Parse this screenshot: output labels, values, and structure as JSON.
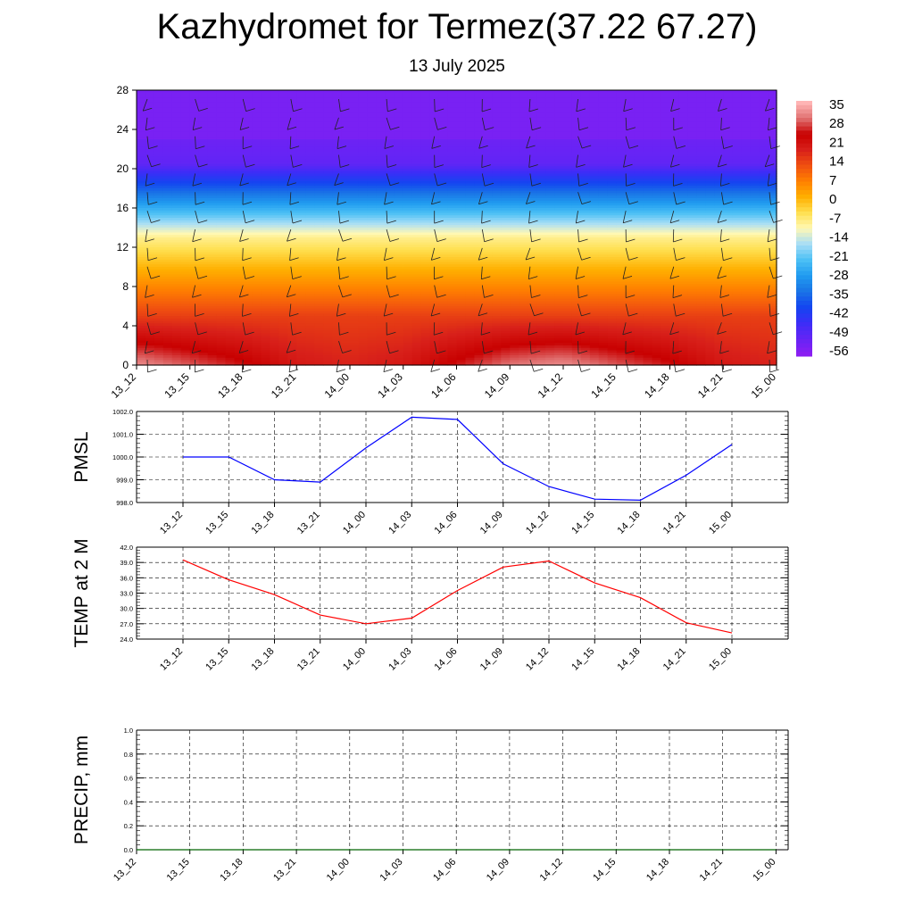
{
  "title": "Kazhydromet for Termez(37.22 67.27)",
  "subtitle": "13 July 2025",
  "chart_data": [
    {
      "type": "heatmap",
      "name": "temperature-wind-cross-section",
      "x_categories": [
        "13_12",
        "13_15",
        "13_18",
        "13_21",
        "14_00",
        "14_03",
        "14_06",
        "14_09",
        "14_12",
        "14_15",
        "14_18",
        "14_21",
        "15_00"
      ],
      "y_ticks": [
        "0",
        "4",
        "8",
        "12",
        "16",
        "20",
        "24",
        "28"
      ],
      "ylim": [
        0,
        28
      ],
      "colorbar_labels": [
        "35",
        "28",
        "21",
        "14",
        "7",
        "0",
        "-7",
        "-14",
        "-21",
        "-28",
        "-35",
        "-42",
        "-49",
        "-56"
      ],
      "colorbar_range": [
        -63,
        42
      ],
      "colors": [
        "#8a1ef2",
        "#6424f5",
        "#3a2ef7",
        "#1346f0",
        "#1a74e6",
        "#209cf0",
        "#4cc0f5",
        "#a8def6",
        "#fff8b5",
        "#ffe050",
        "#ffb000",
        "#ff8000",
        "#f05010",
        "#d8201a",
        "#c80000",
        "#e07070",
        "#ffb4b4"
      ],
      "column_surface_temps": [
        38,
        34,
        30,
        24,
        22,
        24,
        30,
        36,
        38,
        34,
        30,
        24,
        22
      ],
      "grid": true
    },
    {
      "type": "line",
      "name": "pmsl",
      "ylabel": "PMSL",
      "categories": [
        "13_12",
        "13_15",
        "13_18",
        "13_21",
        "14_00",
        "14_03",
        "14_06",
        "14_09",
        "14_12",
        "14_15",
        "14_18",
        "14_21",
        "15_00"
      ],
      "values": [
        1000.0,
        1000.0,
        999.0,
        998.9,
        1000.4,
        1001.75,
        1001.65,
        999.7,
        998.7,
        998.15,
        998.1,
        999.2,
        1000.55
      ],
      "ylim": [
        998.0,
        1002.0
      ],
      "y_ticks": [
        "998.0",
        "999.0",
        "1000.0",
        "1001.0",
        "1002.0"
      ],
      "color": "#0000ff",
      "grid": true
    },
    {
      "type": "line",
      "name": "temp-2m",
      "ylabel": "TEMP at 2 M",
      "categories": [
        "13_12",
        "13_15",
        "13_18",
        "13_21",
        "14_00",
        "14_03",
        "14_06",
        "14_09",
        "14_12",
        "14_15",
        "14_18",
        "14_21",
        "15_00"
      ],
      "values": [
        39.5,
        35.6,
        32.7,
        28.7,
        27.0,
        28.1,
        33.5,
        38.1,
        39.3,
        35.0,
        32.1,
        27.2,
        25.2
      ],
      "ylim": [
        24.0,
        42.0
      ],
      "y_ticks": [
        "24.0",
        "27.0",
        "30.0",
        "33.0",
        "36.0",
        "39.0",
        "42.0"
      ],
      "color": "#ff0000",
      "grid": true
    },
    {
      "type": "line",
      "name": "precip",
      "ylabel": "PRECIP, mm",
      "categories": [
        "13_12",
        "13_15",
        "13_18",
        "13_21",
        "14_00",
        "14_03",
        "14_06",
        "14_09",
        "14_12",
        "14_15",
        "14_18",
        "14_21",
        "15_00"
      ],
      "values": [
        0,
        0,
        0,
        0,
        0,
        0,
        0,
        0,
        0,
        0,
        0,
        0,
        0
      ],
      "ylim": [
        0.0,
        1.0
      ],
      "y_ticks": [
        "0.0",
        "0.2",
        "0.4",
        "0.6",
        "0.8",
        "1.0"
      ],
      "color": "#006400",
      "grid": true
    }
  ]
}
